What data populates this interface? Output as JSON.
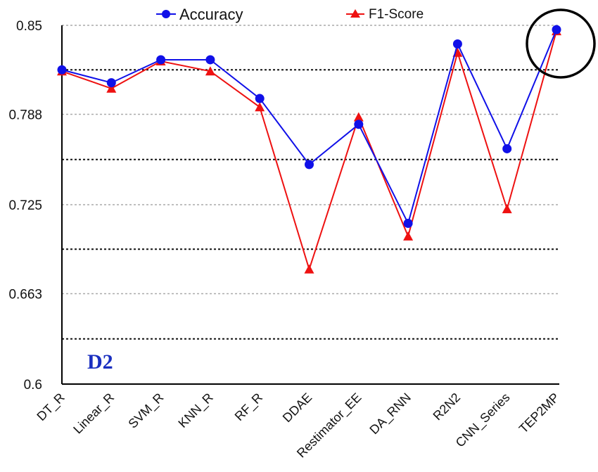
{
  "chart_data": {
    "type": "line",
    "categories": [
      "DT_R",
      "Linear_R",
      "SVM_R",
      "KNN_R",
      "RF_R",
      "DDAE",
      "Restimator_EE",
      "DA_RNN",
      "R2N2",
      "CNN_Series",
      "TEP2MP"
    ],
    "series": [
      {
        "name": "Accuracy",
        "color": "#1010e8",
        "marker": "circle",
        "values": [
          0.819,
          0.81,
          0.826,
          0.826,
          0.799,
          0.753,
          0.781,
          0.712,
          0.837,
          0.764,
          0.847
        ]
      },
      {
        "name": "F1-Score",
        "color": "#ee1111",
        "marker": "triangle",
        "values": [
          0.818,
          0.806,
          0.825,
          0.818,
          0.793,
          0.68,
          0.786,
          0.703,
          0.831,
          0.722,
          0.846
        ]
      }
    ],
    "y_ticks": [
      "0.6",
      "0.663",
      "0.725",
      "0.788",
      "0.85"
    ],
    "ylim": [
      0.6,
      0.85
    ],
    "grid": "horizontal dashed",
    "legend_position": "top",
    "panel_label": "D2",
    "highlight": "TEP2MP"
  }
}
